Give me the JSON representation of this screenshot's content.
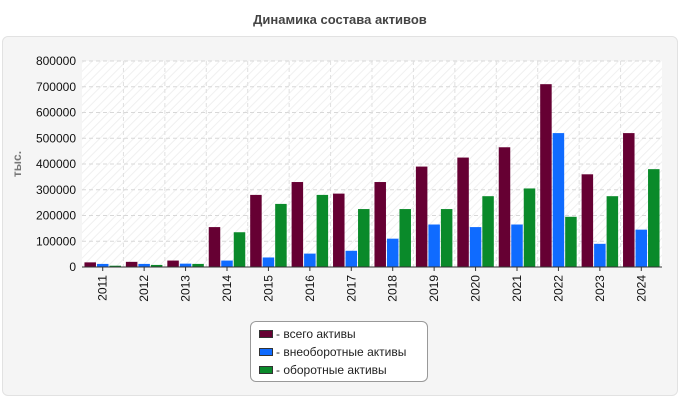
{
  "chart_data": {
    "type": "bar",
    "title": "Динамика состава активов",
    "xlabel": "",
    "ylabel": "тыс.",
    "ylim": [
      0,
      800000
    ],
    "yticks": [
      0,
      100000,
      200000,
      300000,
      400000,
      500000,
      600000,
      700000,
      800000
    ],
    "grid": true,
    "legend_position": "bottom",
    "categories": [
      "2011",
      "2012",
      "2013",
      "2014",
      "2015",
      "2016",
      "2017",
      "2018",
      "2019",
      "2020",
      "2021",
      "2022",
      "2023",
      "2024"
    ],
    "series": [
      {
        "name": "- всего активы",
        "color": "#660033",
        "values": [
          18000,
          20000,
          25000,
          155000,
          280000,
          330000,
          285000,
          330000,
          390000,
          425000,
          465000,
          710000,
          360000,
          520000
        ]
      },
      {
        "name": "- внеоборотные активы",
        "color": "#0f6bff",
        "values": [
          12000,
          12000,
          13000,
          25000,
          37000,
          52000,
          63000,
          110000,
          165000,
          155000,
          165000,
          520000,
          90000,
          145000
        ]
      },
      {
        "name": "- оборотные активы",
        "color": "#0a8a2a",
        "values": [
          5000,
          8000,
          12000,
          135000,
          245000,
          280000,
          225000,
          225000,
          225000,
          275000,
          305000,
          195000,
          275000,
          380000
        ]
      }
    ]
  }
}
